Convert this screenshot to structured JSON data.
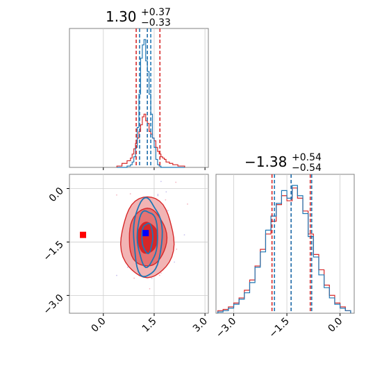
{
  "chart_data": {
    "type": "corner",
    "colors": {
      "red": "#d62728",
      "blue": "#1f77b4",
      "marker_red": "#ff0000",
      "marker_blue": "#0000ff",
      "frame": "#808080",
      "grid": "#cccccc"
    },
    "parameters": [
      {
        "title_main": "1.30",
        "title_plus": "+0.37",
        "title_minus": "−0.33",
        "range": [
          -1.0,
          3.1
        ],
        "ticks": [
          "0.0",
          "1.5",
          "3.0"
        ],
        "tick_values": [
          0.0,
          1.5,
          3.0
        ],
        "red_quantiles": [
          0.97,
          1.3,
          1.67
        ],
        "blue_quantiles": [
          1.07,
          1.3,
          1.4
        ]
      },
      {
        "title_main": "−1.38",
        "title_plus": "+0.54",
        "title_minus": "−0.54",
        "range": [
          -3.5,
          0.4
        ],
        "ticks": [
          "−3.0",
          "−1.5",
          "0.0"
        ],
        "tick_values": [
          -3.0,
          -1.5,
          0.0
        ],
        "red_quantiles": [
          -1.92,
          -1.38,
          -0.84
        ],
        "blue_quantiles": [
          -1.85,
          -1.38,
          -0.8
        ]
      }
    ],
    "hist_x": {
      "bin_edges": [
        0.4,
        0.55,
        0.7,
        0.8,
        0.85,
        0.9,
        0.95,
        1.0,
        1.05,
        1.1,
        1.15,
        1.2,
        1.25,
        1.3,
        1.35,
        1.4,
        1.45,
        1.5,
        1.55,
        1.6,
        1.65,
        1.7,
        1.75,
        1.8,
        1.85,
        1.95,
        2.05,
        2.2,
        2.4
      ],
      "red": [
        0.01,
        0.03,
        0.05,
        0.07,
        0.1,
        0.14,
        0.18,
        0.22,
        0.27,
        0.32,
        0.38,
        0.4,
        0.35,
        0.33,
        0.27,
        0.25,
        0.22,
        0.2,
        0.15,
        0.12,
        0.1,
        0.08,
        0.07,
        0.06,
        0.04,
        0.03,
        0.02,
        0.01
      ],
      "blue": [
        0.0,
        0.0,
        0.01,
        0.02,
        0.04,
        0.08,
        0.15,
        0.3,
        0.55,
        0.82,
        0.92,
        0.96,
        0.8,
        0.72,
        0.55,
        0.4,
        0.22,
        0.15,
        0.06,
        0.02,
        0.01,
        0.0,
        0.0,
        0.0,
        0.0,
        0.0,
        0.0,
        0.0
      ]
    },
    "hist_y": {
      "bin_edges": [
        -3.45,
        -3.3,
        -3.15,
        -3.0,
        -2.85,
        -2.7,
        -2.55,
        -2.4,
        -2.25,
        -2.1,
        -1.95,
        -1.8,
        -1.65,
        -1.5,
        -1.35,
        -1.2,
        -1.05,
        -0.9,
        -0.75,
        -0.6,
        -0.45,
        -0.3,
        -0.15,
        0.0,
        0.15,
        0.3
      ],
      "red": [
        0.02,
        0.03,
        0.05,
        0.08,
        0.12,
        0.18,
        0.26,
        0.37,
        0.5,
        0.62,
        0.72,
        0.85,
        0.92,
        0.88,
        0.98,
        0.9,
        0.8,
        0.62,
        0.46,
        0.34,
        0.22,
        0.14,
        0.08,
        0.05,
        0.02
      ],
      "blue": [
        0.01,
        0.02,
        0.04,
        0.07,
        0.11,
        0.16,
        0.24,
        0.36,
        0.48,
        0.65,
        0.76,
        0.86,
        0.96,
        0.9,
        1.0,
        0.92,
        0.78,
        0.6,
        0.44,
        0.3,
        0.2,
        0.12,
        0.07,
        0.04,
        0.02
      ]
    },
    "contours_2d": {
      "center": [
        1.3,
        -1.38
      ],
      "red_sigma": [
        0.37,
        0.54
      ],
      "blue_sigma": [
        0.2,
        0.52
      ],
      "levels": [
        0.8,
        1.5,
        2.1
      ]
    },
    "markers": [
      {
        "name": "red-truth-marker",
        "x": -0.6,
        "y": -1.3,
        "color": "#ff0000"
      },
      {
        "name": "blue-truth-marker",
        "x": 1.25,
        "y": -1.25,
        "color": "#0000ff"
      }
    ]
  }
}
